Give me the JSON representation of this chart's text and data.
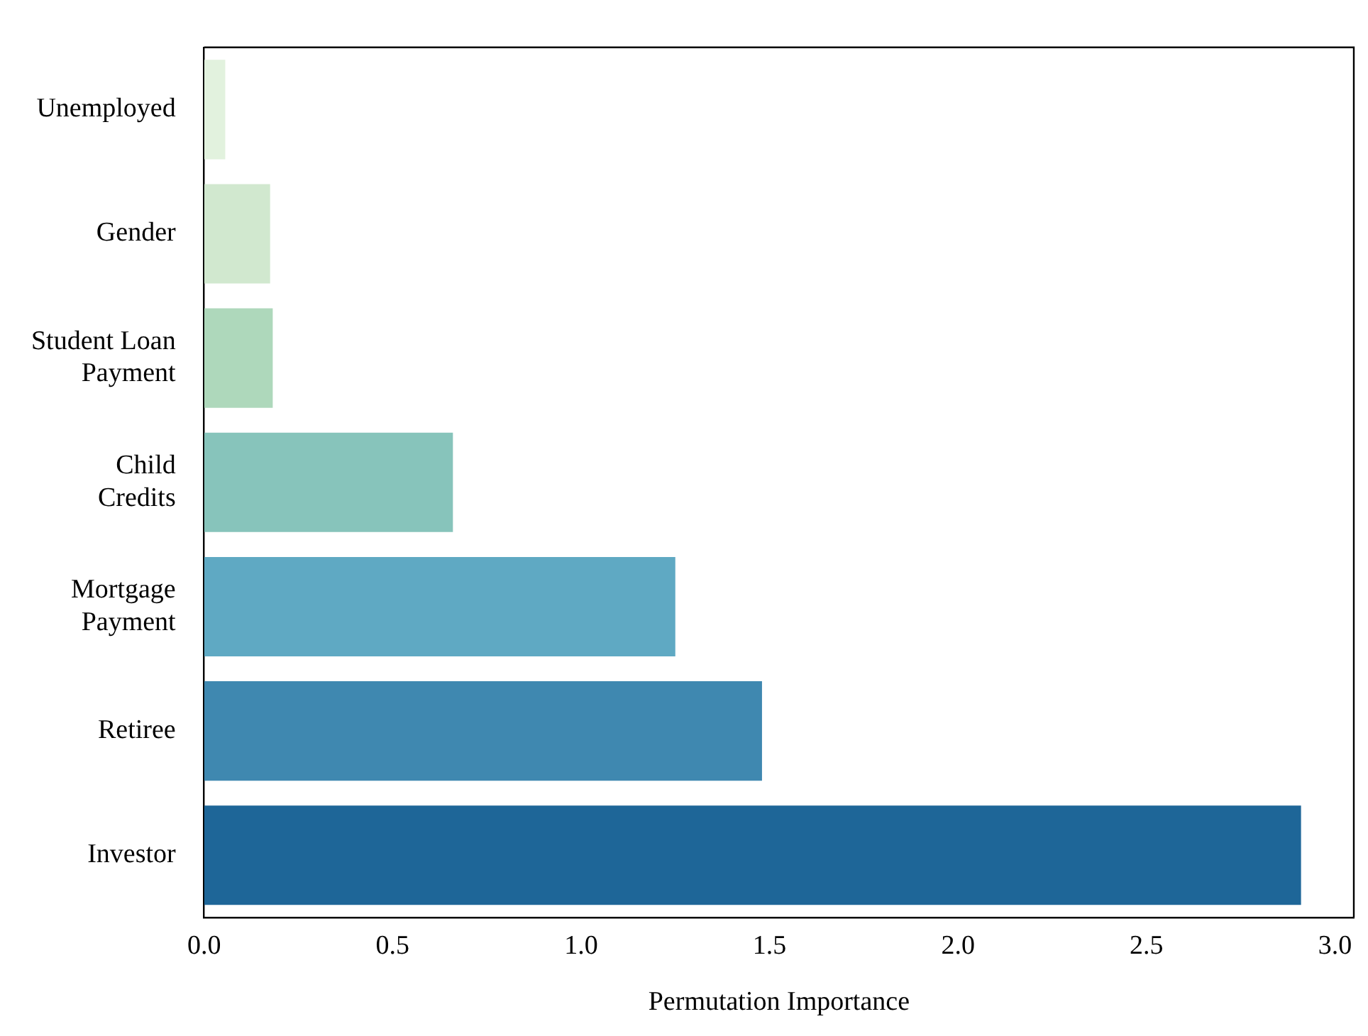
{
  "chart_data": {
    "type": "bar",
    "orientation": "horizontal",
    "xlabel": "Permutation Importance",
    "categories": [
      "Unemployed",
      "Gender",
      "Student Loan\nPayment",
      "Child\nCredits",
      "Mortgage\nPayment",
      "Retiree",
      "Investor"
    ],
    "values": [
      0.056,
      0.175,
      0.182,
      0.66,
      1.25,
      1.48,
      2.91
    ],
    "colors": [
      "#e2f2de",
      "#d1e8cf",
      "#aed8bb",
      "#87c4bb",
      "#5fa9c3",
      "#3f88b0",
      "#1e6698"
    ],
    "xlim": [
      0,
      3.05
    ],
    "xticks": [
      {
        "value": 0,
        "label": "0.0"
      },
      {
        "value": 0.5,
        "label": "0.5"
      },
      {
        "value": 1,
        "label": "1.0"
      },
      {
        "value": 1.5,
        "label": "1.5"
      },
      {
        "value": 2,
        "label": "2.0"
      },
      {
        "value": 2.5,
        "label": "2.5"
      },
      {
        "value": 3,
        "label": "3.0"
      }
    ],
    "grid": false,
    "legend": false
  }
}
